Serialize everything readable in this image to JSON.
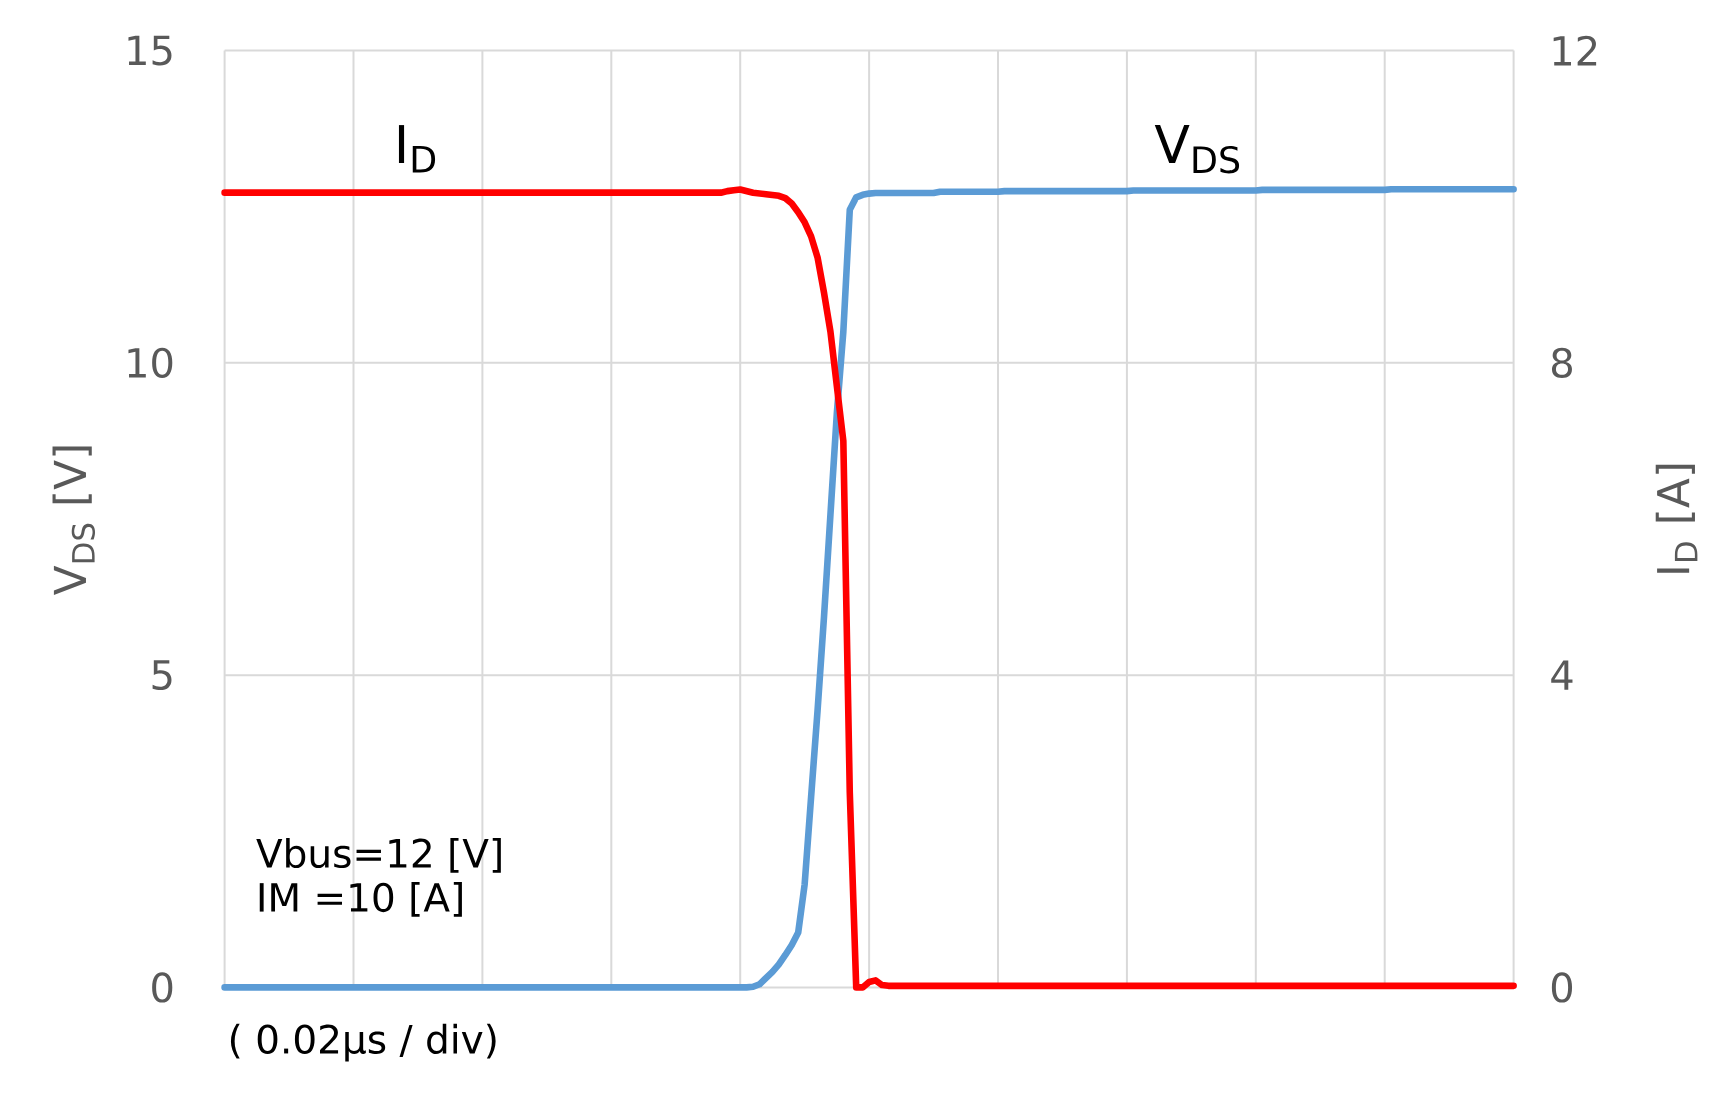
{
  "chart_data": {
    "type": "line",
    "ylabel": "V$_{DS}$ [V]",
    "y2label": "I$_{D}$ [A]",
    "annotations": [
      "Vbus=12 [V]",
      "IM =10 [A]",
      "( 0.02µs / div)"
    ],
    "categories": [
      null,
      null,
      null,
      null,
      null,
      null,
      null,
      null,
      null,
      null,
      null,
      null,
      null,
      null,
      null,
      null,
      null,
      null,
      null,
      null,
      null,
      null,
      null,
      null,
      null,
      null,
      null,
      null,
      null,
      null,
      null,
      null,
      null,
      null,
      null,
      null,
      null,
      null,
      null,
      null,
      null,
      null,
      null,
      null,
      null,
      null,
      null,
      null,
      null,
      null,
      null,
      null,
      null,
      null,
      null,
      null,
      null,
      null,
      null,
      null,
      null,
      null,
      null,
      null,
      null,
      null,
      null,
      null,
      null,
      null,
      null,
      null,
      null,
      null,
      null,
      null,
      null,
      null,
      null,
      null,
      null,
      null,
      null,
      null,
      null,
      null,
      null,
      null,
      null,
      null,
      null,
      null,
      null,
      null,
      null,
      null,
      null,
      null,
      null,
      null,
      null,
      null,
      null,
      null,
      null,
      null,
      null,
      null,
      null,
      null,
      null,
      null,
      null,
      null,
      null,
      null,
      null,
      null,
      null,
      null,
      null,
      null,
      null,
      null,
      null,
      null,
      null,
      null,
      null,
      null,
      null,
      null,
      null,
      null,
      null,
      null,
      null,
      null,
      null,
      null,
      null,
      null,
      null,
      null,
      null,
      null,
      null,
      null,
      null,
      null,
      null,
      null,
      null,
      null,
      null,
      null,
      null,
      null,
      null,
      null,
      null,
      null,
      null,
      null,
      null,
      null,
      null,
      null,
      null,
      null,
      null,
      null,
      null,
      null,
      null,
      null,
      null,
      null,
      null,
      null,
      null,
      null,
      null,
      null,
      null,
      null,
      null,
      null,
      null,
      null,
      null,
      null,
      null,
      null,
      null,
      null,
      null,
      null,
      null,
      null,
      null
    ],
    "ylim": [
      0,
      15
    ],
    "yticks": [
      0,
      5,
      10,
      15
    ],
    "y2lim": [
      0,
      12
    ],
    "y2ticks": [
      0,
      4,
      8,
      12
    ],
    "grid": true,
    "marker": "none",
    "line_style": "solid",
    "series": [
      {
        "name": "V$_{DS}$",
        "color": "#5b9bd5",
        "values": [
          0,
          0,
          0,
          0,
          0,
          0,
          0,
          0,
          0,
          0,
          0,
          0,
          0,
          0,
          0,
          0,
          0,
          0,
          0,
          0,
          0,
          0,
          0,
          0,
          0,
          0,
          0,
          0,
          0,
          0,
          0,
          0,
          0,
          0,
          0,
          0,
          0,
          0,
          0,
          0,
          0,
          0,
          0,
          0,
          0,
          0,
          0,
          0,
          0,
          0,
          0,
          0,
          0,
          0,
          0,
          0,
          0,
          0,
          0,
          0,
          0,
          0,
          0,
          0,
          0,
          0,
          0,
          0,
          0,
          0,
          0,
          0,
          0,
          0,
          0,
          0,
          0,
          0,
          0,
          0,
          0,
          0,
          0.01,
          0.05,
          0.15,
          0.25,
          0.37,
          0.52,
          0.68,
          0.88,
          1.65,
          3.05,
          4.43,
          5.93,
          7.57,
          9.2,
          10.5,
          12.45,
          12.65,
          12.69,
          12.71,
          12.72,
          12.72,
          12.72,
          12.72,
          12.72,
          12.72,
          12.72,
          12.72,
          12.72,
          12.72,
          12.74,
          12.74,
          12.74,
          12.74,
          12.74,
          12.74,
          12.74,
          12.74,
          12.74,
          12.74,
          12.75,
          12.75,
          12.75,
          12.75,
          12.75,
          12.75,
          12.75,
          12.75,
          12.75,
          12.75,
          12.75,
          12.75,
          12.75,
          12.75,
          12.75,
          12.75,
          12.75,
          12.75,
          12.75,
          12.75,
          12.76,
          12.76,
          12.76,
          12.76,
          12.76,
          12.76,
          12.76,
          12.76,
          12.76,
          12.76,
          12.76,
          12.76,
          12.76,
          12.76,
          12.76,
          12.76,
          12.76,
          12.76,
          12.76,
          12.76,
          12.77,
          12.77,
          12.77,
          12.77,
          12.77,
          12.77,
          12.77,
          12.77,
          12.77,
          12.77,
          12.77,
          12.77,
          12.77,
          12.77,
          12.77,
          12.77,
          12.77,
          12.77,
          12.77,
          12.77,
          12.78,
          12.78,
          12.78,
          12.78,
          12.78,
          12.78,
          12.78,
          12.78,
          12.78,
          12.78,
          12.78,
          12.78,
          12.78,
          12.78,
          12.78,
          12.78,
          12.78,
          12.78,
          12.78,
          12.78
        ]
      },
      {
        "name": "I$_{D}$",
        "color": "#ff0000",
        "axis": "y2",
        "values": [
          10.18,
          10.18,
          10.18,
          10.18,
          10.18,
          10.18,
          10.18,
          10.18,
          10.18,
          10.18,
          10.18,
          10.18,
          10.18,
          10.18,
          10.18,
          10.18,
          10.18,
          10.18,
          10.18,
          10.18,
          10.18,
          10.18,
          10.18,
          10.18,
          10.18,
          10.18,
          10.18,
          10.18,
          10.18,
          10.18,
          10.18,
          10.18,
          10.18,
          10.18,
          10.18,
          10.18,
          10.18,
          10.18,
          10.18,
          10.18,
          10.18,
          10.18,
          10.18,
          10.18,
          10.18,
          10.18,
          10.18,
          10.18,
          10.18,
          10.18,
          10.18,
          10.18,
          10.18,
          10.18,
          10.18,
          10.18,
          10.18,
          10.18,
          10.18,
          10.18,
          10.18,
          10.18,
          10.18,
          10.18,
          10.18,
          10.18,
          10.18,
          10.18,
          10.18,
          10.18,
          10.18,
          10.18,
          10.18,
          10.18,
          10.18,
          10.18,
          10.18,
          10.18,
          10.2,
          10.21,
          10.22,
          10.2,
          10.18,
          10.17,
          10.16,
          10.15,
          10.14,
          10.11,
          10.04,
          9.93,
          9.8,
          9.62,
          9.35,
          8.9,
          8.4,
          7.7,
          7.0,
          2.5,
          0,
          0,
          0.07,
          0.09,
          0.03,
          0.02,
          0.02,
          0.02,
          0.02,
          0.02,
          0.02,
          0.02,
          0.02,
          0.02,
          0.02,
          0.02,
          0.02,
          0.02,
          0.02,
          0.02,
          0.02,
          0.02,
          0.02,
          0.02,
          0.02,
          0.02,
          0.02,
          0.02,
          0.02,
          0.02,
          0.02,
          0.02,
          0.02,
          0.02,
          0.02,
          0.02,
          0.02,
          0.02,
          0.02,
          0.02,
          0.02,
          0.02,
          0.02,
          0.02,
          0.02,
          0.02,
          0.02,
          0.02,
          0.02,
          0.02,
          0.02,
          0.02,
          0.02,
          0.02,
          0.02,
          0.02,
          0.02,
          0.02,
          0.02,
          0.02,
          0.02,
          0.02,
          0.02,
          0.02,
          0.02,
          0.02,
          0.02,
          0.02,
          0.02,
          0.02,
          0.02,
          0.02,
          0.02,
          0.02,
          0.02,
          0.02,
          0.02,
          0.02,
          0.02,
          0.02,
          0.02,
          0.02,
          0.02,
          0.02,
          0.02,
          0.02,
          0.02,
          0.02,
          0.02,
          0.02,
          0.02,
          0.02,
          0.02,
          0.02,
          0.02,
          0.02,
          0.02,
          0.02,
          0.02,
          0.02,
          0.02,
          0.02,
          0.02
        ]
      }
    ]
  }
}
